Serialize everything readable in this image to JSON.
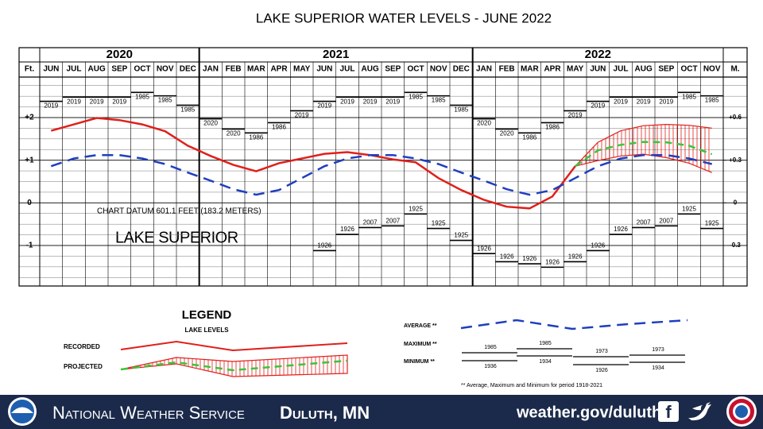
{
  "chart_data": {
    "type": "line",
    "title": "LAKE SUPERIOR WATER LEVELS - JUNE 2022",
    "years": [
      "2020",
      "2021",
      "2022"
    ],
    "categories": [
      "JUN",
      "JUL",
      "AUG",
      "SEP",
      "OCT",
      "NOV",
      "DEC",
      "JAN",
      "FEB",
      "MAR",
      "APR",
      "MAY",
      "JUN",
      "JUL",
      "AUG",
      "SEP",
      "OCT",
      "NOV",
      "DEC",
      "JAN",
      "FEB",
      "MAR",
      "APR",
      "MAY",
      "JUN",
      "JUL",
      "AUG",
      "SEP",
      "OCT",
      "NOV"
    ],
    "y_axis_label": "Ft.",
    "y2_axis_label": "M.",
    "ylim": [
      -1.95,
      2.95
    ],
    "yticks": [
      {
        "value": 2,
        "label": "+2"
      },
      {
        "value": 1,
        "label": "+1"
      },
      0,
      -1
    ],
    "minor_yticks": [
      -1.75,
      -1.5,
      -1.25,
      -0.75,
      -0.5,
      -0.25,
      0.25,
      0.5,
      0.75,
      1.25,
      1.5,
      1.75,
      2.25,
      2.5,
      2.75
    ],
    "y2lim": [
      -0.585,
      0.885
    ],
    "y2ticks": [
      {
        "value": 0.6,
        "label": "+0.6"
      },
      {
        "value": 0.3,
        "label": "+0.3"
      },
      0,
      -0.3
    ],
    "series": [
      {
        "name": "RECORDED",
        "color": "#e0201b",
        "dash": "none",
        "values": [
          1.69,
          1.84,
          1.99,
          1.94,
          1.84,
          1.68,
          1.34,
          1.1,
          0.89,
          0.74,
          0.93,
          1.04,
          1.15,
          1.19,
          1.12,
          1.02,
          0.95,
          0.58,
          0.3,
          0.07,
          -0.09,
          -0.13,
          0.15,
          0.86,
          null,
          null,
          null,
          null,
          null,
          null
        ]
      },
      {
        "name": "AVERAGE **",
        "color": "#1f3fbf",
        "dash": "14 8",
        "values": [
          0.86,
          1.04,
          1.12,
          1.12,
          1.04,
          0.91,
          0.71,
          0.52,
          0.32,
          0.19,
          0.3,
          0.58,
          0.86,
          1.04,
          1.12,
          1.12,
          1.04,
          0.91,
          0.71,
          0.52,
          0.32,
          0.19,
          0.3,
          0.58,
          0.86,
          1.04,
          1.12,
          1.12,
          1.04,
          0.91
        ]
      },
      {
        "name": "PROJECTED",
        "color": "#3cc43c",
        "dash": "9 6",
        "values": [
          null,
          null,
          null,
          null,
          null,
          null,
          null,
          null,
          null,
          null,
          null,
          null,
          null,
          null,
          null,
          null,
          null,
          null,
          null,
          null,
          null,
          null,
          null,
          0.86,
          1.23,
          1.36,
          1.43,
          1.42,
          1.34,
          1.14
        ]
      }
    ],
    "projected_range": {
      "color": "#e0201b",
      "upper": [
        null,
        null,
        null,
        null,
        null,
        null,
        null,
        null,
        null,
        null,
        null,
        null,
        null,
        null,
        null,
        null,
        null,
        null,
        null,
        null,
        null,
        null,
        null,
        0.86,
        1.42,
        1.69,
        1.81,
        1.84,
        1.82,
        1.75
      ],
      "lower": [
        null,
        null,
        null,
        null,
        null,
        null,
        null,
        null,
        null,
        null,
        null,
        null,
        null,
        null,
        null,
        null,
        null,
        null,
        null,
        null,
        null,
        null,
        null,
        0.86,
        0.99,
        1.1,
        1.14,
        1.06,
        0.93,
        0.71
      ]
    },
    "records": {
      "months": [
        "JAN",
        "FEB",
        "MAR",
        "APR",
        "MAY",
        "JUN",
        "JUL",
        "AUG",
        "SEP",
        "OCT",
        "NOV",
        "DEC"
      ],
      "max": [
        1.97,
        1.73,
        1.64,
        1.88,
        2.16,
        2.38,
        2.48,
        2.48,
        2.48,
        2.59,
        2.51,
        2.29
      ],
      "max_year": [
        "2020",
        "2020",
        "1986",
        "1986",
        "2019",
        "2019",
        "2019",
        "2019",
        "2019",
        "1985",
        "1985",
        "1985"
      ],
      "min": [
        -1.19,
        -1.38,
        -1.43,
        -1.51,
        -1.38,
        -1.12,
        -0.74,
        -0.58,
        -0.54,
        -0.26,
        -0.6,
        -0.88
      ],
      "min_year": [
        "1926",
        "1926",
        "1926",
        "1926",
        "1926",
        "1926",
        "1926",
        "2007",
        "2007",
        "1925",
        "1925",
        "1925"
      ],
      "max_label": "MAXIMUM **",
      "min_label": "MINIMUM **"
    },
    "annotations": [
      "CHART DATUM  601.1 FEET (183.2 METERS)",
      "LAKE SUPERIOR"
    ],
    "legend_panel": {
      "title": "LEGEND",
      "subtitle": "LAKE LEVELS",
      "max_years": [
        "1985",
        "1985",
        "1973",
        "1973"
      ],
      "min_years": [
        "1936",
        "1934",
        "1926",
        "1934"
      ],
      "footnote": "** Average, Maximum and Minimum for period 1918-2021"
    }
  },
  "footer": {
    "agency": "National Weather Service",
    "office": "Duluth, MN",
    "url": "weather.gov/duluth"
  }
}
